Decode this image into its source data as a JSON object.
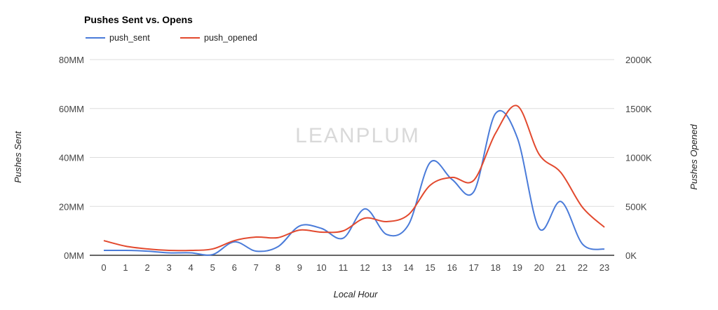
{
  "chart_data": {
    "type": "line",
    "title": "Pushes Sent vs. Opens",
    "watermark": "LEANPLUM",
    "xlabel": "Local Hour",
    "ylabel_left": "Pushes Sent",
    "ylabel_right": "Pushes Opened",
    "legend_placement": "top-left",
    "grid": true,
    "categories": [
      "0",
      "1",
      "2",
      "3",
      "4",
      "5",
      "6",
      "7",
      "8",
      "9",
      "10",
      "11",
      "12",
      "13",
      "14",
      "15",
      "16",
      "17",
      "18",
      "19",
      "20",
      "21",
      "22",
      "23"
    ],
    "y_left": {
      "range": [
        0,
        80
      ],
      "unit": "MM",
      "ticks": [
        "0MM",
        "20MM",
        "40MM",
        "60MM",
        "80MM"
      ]
    },
    "y_right": {
      "range": [
        0,
        2000
      ],
      "unit": "K",
      "ticks": [
        "0K",
        "500K",
        "1000K",
        "1500K",
        "2000K"
      ]
    },
    "series": [
      {
        "name": "push_sent",
        "axis": "left",
        "color": "#4a7bd9",
        "values": [
          2,
          2,
          1.7,
          1,
          1,
          0.3,
          5.5,
          1.7,
          3.5,
          12,
          11,
          7,
          19,
          8.5,
          12.5,
          38,
          31,
          26,
          58,
          48,
          11,
          22,
          4.5,
          2.5
        ]
      },
      {
        "name": "push_opened",
        "axis": "right",
        "color": "#e2492e",
        "values": [
          150,
          93,
          65,
          50,
          50,
          65,
          150,
          186,
          180,
          258,
          237,
          250,
          380,
          344,
          416,
          717,
          796,
          767,
          1248,
          1527,
          1032,
          846,
          488,
          287
        ]
      }
    ]
  }
}
